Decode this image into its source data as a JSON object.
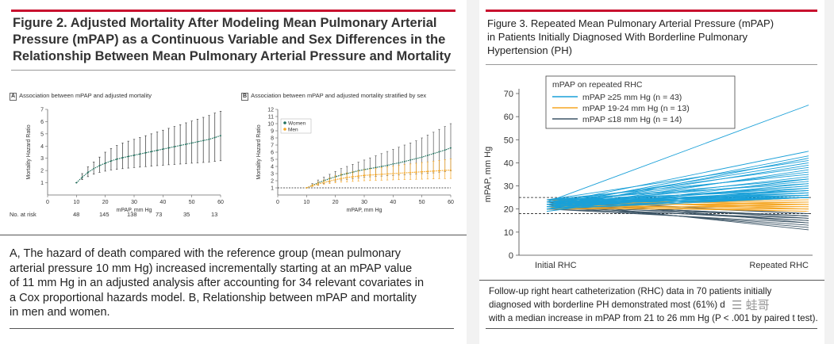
{
  "figure2": {
    "title": "Figure 2. Adjusted Mortality After Modeling Mean Pulmonary Arterial Pressure (mPAP) as a Continuous Variable and Sex Differences in the Relationship Between Mean Pulmonary Arterial Pressure and Mortality",
    "title_lines": [
      "Figure 2. Adjusted Mortality After Modeling Mean Pulmonary Arterial",
      "Pressure (mPAP) as a Continuous Variable and Sex Differences in the",
      "Relationship Between Mean Pulmonary Arterial Pressure and Mortality"
    ],
    "panel_a": {
      "letter": "A",
      "title": "Association between mPAP and adjusted mortality"
    },
    "panel_b": {
      "letter": "B",
      "title": "Association between mPAP and adjusted mortality stratified by sex"
    },
    "no_at_risk_label": "No. at risk",
    "at_risk": [
      "48",
      "145",
      "138",
      "73",
      "35",
      "13"
    ],
    "caption_lines": [
      "A, The hazard of death compared with the reference group (mean pulmonary",
      "arterial pressure 10 mm Hg) increased incrementally starting at an mPAP value",
      "of 11 mm Hg in an adjusted analysis after accounting for 34 relevant covariates in",
      "a Cox proportional hazards model. B, Relationship between mPAP and mortality",
      "in men and women."
    ]
  },
  "figure3": {
    "title_lines": [
      "Figure 3. Repeated Mean Pulmonary Arterial Pressure (mPAP)",
      "in Patients Initially Diagnosed With Borderline Pulmonary",
      "Hypertension (PH)"
    ],
    "caption_lines": [
      "Follow-up right heart catheterization (RHC) data in 70 patients initially",
      "diagnosed with borderline PH demonstrated most (61%) d",
      "with a median increase in mPAP from 21 to 26 mm Hg (P < .001 by paired t test)."
    ],
    "watermark": "☰ 蛙哥"
  },
  "colors": {
    "accent_red": "#c8102e",
    "women": "#1f6f5c",
    "men": "#f5a623",
    "high": "#1aa0d8",
    "mid": "#f5a623",
    "low": "#3d5566"
  },
  "chart_data": [
    {
      "type": "line",
      "id": "fig2a",
      "xlabel": "mPAP, mm Hg",
      "ylabel": "Mortality Hazard Ratio",
      "xlim": [
        0,
        60
      ],
      "ylim": [
        0,
        7
      ],
      "xticks": [
        0,
        10,
        20,
        30,
        40,
        50,
        60
      ],
      "yticks": [
        1,
        2,
        3,
        4,
        5,
        6,
        7
      ],
      "series": [
        {
          "x": [
            10,
            12,
            14,
            16,
            18,
            20,
            22,
            24,
            26,
            28,
            30,
            32,
            34,
            36,
            38,
            40,
            42,
            44,
            46,
            48,
            50,
            52,
            54,
            56,
            58,
            60
          ],
          "values": [
            1.0,
            1.45,
            1.85,
            2.15,
            2.4,
            2.6,
            2.78,
            2.93,
            3.05,
            3.15,
            3.25,
            3.35,
            3.45,
            3.55,
            3.65,
            3.75,
            3.85,
            3.95,
            4.05,
            4.15,
            4.25,
            4.35,
            4.45,
            4.55,
            4.7,
            4.85
          ],
          "lower": [
            1.0,
            1.25,
            1.5,
            1.7,
            1.85,
            1.95,
            2.05,
            2.1,
            2.15,
            2.2,
            2.25,
            2.28,
            2.32,
            2.36,
            2.4,
            2.43,
            2.47,
            2.5,
            2.53,
            2.56,
            2.6,
            2.63,
            2.66,
            2.7,
            2.75,
            2.8
          ],
          "upper": [
            1.0,
            1.75,
            2.3,
            2.7,
            3.1,
            3.5,
            3.8,
            4.05,
            4.25,
            4.4,
            4.55,
            4.7,
            4.85,
            5.0,
            5.15,
            5.3,
            5.45,
            5.6,
            5.75,
            5.9,
            6.05,
            6.2,
            6.35,
            6.5,
            6.7,
            6.85
          ]
        }
      ]
    },
    {
      "type": "line",
      "id": "fig2b",
      "xlabel": "mPAP, mm Hg",
      "ylabel": "Mortality Hazard Ratio",
      "xlim": [
        0,
        60
      ],
      "ylim": [
        0,
        12
      ],
      "xticks": [
        0,
        10,
        20,
        30,
        40,
        50,
        60
      ],
      "yticks": [
        1,
        2,
        3,
        4,
        5,
        6,
        7,
        8,
        9,
        10,
        11,
        12
      ],
      "legend": [
        "Women",
        "Men"
      ],
      "series": [
        {
          "name": "Women",
          "x": [
            10,
            12,
            14,
            16,
            18,
            20,
            22,
            24,
            26,
            28,
            30,
            32,
            34,
            36,
            38,
            40,
            42,
            44,
            46,
            48,
            50,
            52,
            54,
            56,
            58,
            60
          ],
          "values": [
            1.0,
            1.35,
            1.7,
            2.0,
            2.3,
            2.55,
            2.8,
            3.0,
            3.2,
            3.4,
            3.55,
            3.7,
            3.85,
            4.0,
            4.15,
            4.35,
            4.5,
            4.7,
            4.9,
            5.1,
            5.3,
            5.55,
            5.8,
            6.05,
            6.3,
            6.6
          ],
          "lower": [
            1.0,
            1.2,
            1.4,
            1.6,
            1.8,
            1.95,
            2.1,
            2.2,
            2.3,
            2.4,
            2.5,
            2.55,
            2.6,
            2.65,
            2.7,
            2.75,
            2.8,
            2.85,
            2.9,
            2.95,
            3.0,
            3.05,
            3.1,
            3.2,
            3.3,
            3.4
          ],
          "upper": [
            1.0,
            1.6,
            2.1,
            2.5,
            2.9,
            3.3,
            3.7,
            4.0,
            4.3,
            4.6,
            4.9,
            5.2,
            5.5,
            5.8,
            6.1,
            6.4,
            6.7,
            7.0,
            7.3,
            7.6,
            8.0,
            8.4,
            8.8,
            9.2,
            9.6,
            10.0
          ]
        },
        {
          "name": "Men",
          "x": [
            10,
            12,
            14,
            16,
            18,
            20,
            22,
            24,
            26,
            28,
            30,
            32,
            34,
            36,
            38,
            40,
            42,
            44,
            46,
            48,
            50,
            52,
            54,
            56,
            58,
            60
          ],
          "values": [
            1.0,
            1.3,
            1.55,
            1.75,
            1.95,
            2.15,
            2.3,
            2.45,
            2.55,
            2.65,
            2.75,
            2.8,
            2.85,
            2.9,
            2.95,
            3.0,
            3.05,
            3.1,
            3.15,
            3.2,
            3.25,
            3.3,
            3.35,
            3.4,
            3.45,
            3.5
          ],
          "lower": [
            1.0,
            1.2,
            1.35,
            1.5,
            1.6,
            1.7,
            1.8,
            1.85,
            1.9,
            1.95,
            2.0,
            2.02,
            2.05,
            2.08,
            2.1,
            2.12,
            2.14,
            2.16,
            2.18,
            2.2,
            2.22,
            2.24,
            2.26,
            2.28,
            2.3,
            2.32
          ],
          "upper": [
            1.0,
            1.45,
            1.8,
            2.1,
            2.4,
            2.7,
            2.95,
            3.1,
            3.25,
            3.4,
            3.55,
            3.65,
            3.75,
            3.85,
            3.95,
            4.05,
            4.15,
            4.25,
            4.35,
            4.45,
            4.55,
            4.65,
            4.75,
            4.85,
            4.95,
            5.05
          ]
        }
      ],
      "reference_line": 1
    },
    {
      "type": "line",
      "id": "fig3",
      "ylabel": "mPAP, mm Hg",
      "categories": [
        "Initial RHC",
        "Repeated RHC"
      ],
      "ylim": [
        0,
        70
      ],
      "yticks": [
        0,
        10,
        20,
        30,
        40,
        50,
        60,
        70
      ],
      "reference_lines": [
        25,
        18
      ],
      "legend_title": "mPAP on repeated RHC",
      "legend": [
        "mPAP ≥25 mm Hg (n = 43)",
        "mPAP 19-24 mm Hg (n = 13)",
        "mPAP ≤18 mm Hg (n = 14)"
      ],
      "series": [
        {
          "name": "mPAP ≥25 mm Hg (n = 43)",
          "color_key": "high",
          "start": [
            23,
            22,
            21,
            20,
            24,
            22,
            21,
            23,
            20,
            22,
            24,
            21,
            19,
            23,
            22,
            20,
            24,
            21,
            22,
            23,
            20,
            22,
            21,
            24,
            23,
            22,
            21,
            20,
            22,
            23,
            24,
            21,
            22,
            20,
            23,
            22,
            21,
            24,
            22,
            20,
            23,
            21,
            22
          ],
          "end": [
            65,
            45,
            43,
            42,
            41,
            40,
            39,
            38,
            37,
            36,
            35,
            34,
            33,
            33,
            32,
            31,
            31,
            30,
            30,
            29,
            29,
            28,
            28,
            28,
            27,
            27,
            27,
            26,
            26,
            26,
            26,
            25,
            25,
            25,
            25,
            25,
            25,
            25,
            25,
            25,
            25,
            25,
            25
          ]
        },
        {
          "name": "mPAP 19-24 mm Hg (n = 13)",
          "color_key": "mid",
          "start": [
            22,
            23,
            21,
            20,
            24,
            22,
            21,
            23,
            22,
            20,
            24,
            21,
            22
          ],
          "end": [
            24,
            23,
            23,
            22,
            22,
            22,
            21,
            21,
            20,
            20,
            20,
            19,
            19
          ]
        },
        {
          "name": "mPAP ≤18 mm Hg (n = 14)",
          "color_key": "low",
          "start": [
            24,
            23,
            22,
            21,
            22,
            20,
            23,
            21,
            22,
            24,
            20,
            21,
            22,
            23
          ],
          "end": [
            18,
            18,
            17,
            17,
            17,
            16,
            16,
            15,
            15,
            14,
            14,
            13,
            12,
            11
          ]
        }
      ]
    }
  ]
}
